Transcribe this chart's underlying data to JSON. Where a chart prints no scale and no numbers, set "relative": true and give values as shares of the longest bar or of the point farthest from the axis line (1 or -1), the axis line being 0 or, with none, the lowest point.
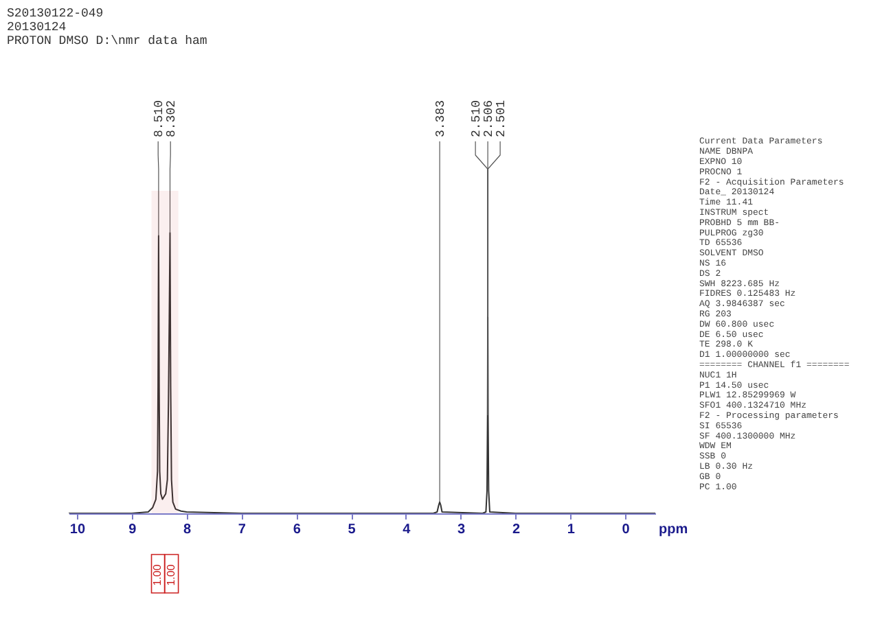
{
  "chart_data": [
    {
      "type": "line",
      "title": "S20130122-049",
      "subtitle": "20130124\nPROTON DMSO D:\\nmr data ham",
      "xlabel": "ppm",
      "relative": true,
      "xlim": [
        10.15,
        -0.55
      ],
      "xticks": [
        10,
        9,
        8,
        7,
        6,
        5,
        4,
        3,
        2,
        1,
        0
      ],
      "x": [
        10.15,
        9.0,
        8.7,
        8.62,
        8.56,
        8.53,
        8.52,
        8.51,
        8.5,
        8.49,
        8.47,
        8.44,
        8.41,
        8.38,
        8.35,
        8.33,
        8.315,
        8.302,
        8.29,
        8.275,
        8.25,
        8.2,
        8.1,
        8.0,
        7.0,
        6.0,
        3.5,
        3.43,
        3.4,
        3.383,
        3.365,
        3.34,
        2.6,
        2.54,
        2.52,
        2.51,
        2.506,
        2.501,
        2.49,
        2.47,
        2.0,
        -0.55
      ],
      "series": [
        {
          "color": "#333333",
          "values": [
            0,
            0,
            0.005,
            0.02,
            0.05,
            0.15,
            0.45,
            0.99,
            0.45,
            0.15,
            0.07,
            0.05,
            0.06,
            0.07,
            0.12,
            0.4,
            0.7,
            1,
            0.45,
            0.12,
            0.04,
            0.015,
            0.008,
            0.005,
            0,
            0,
            0,
            0.005,
            0.03,
            0.04,
            0.03,
            0.005,
            0,
            0.005,
            0.08,
            0.35,
            0.7,
            0.35,
            0.08,
            0.005,
            0,
            0
          ]
        }
      ],
      "annotations": [
        {
          "text": "8.510",
          "x": 8.51,
          "y": 0.99
        },
        {
          "text": "8.302",
          "x": 8.302,
          "y": 1
        },
        {
          "text": "3.383",
          "x": 3.383,
          "y": 0.04
        },
        {
          "text": "2.510",
          "x": 2.51,
          "y": 0.35
        },
        {
          "text": "2.506",
          "x": 2.506,
          "y": 0.7
        },
        {
          "text": "2.501",
          "x": 2.501,
          "y": 0.35
        }
      ],
      "bands": [
        {
          "axis": "x",
          "from": 8.64,
          "to": 8.4,
          "label": "1.00",
          "color": "#cc2222"
        },
        {
          "axis": "x",
          "from": 8.4,
          "to": 8.15,
          "label": "1.00",
          "color": "#cc2222"
        }
      ]
    },
    {
      "type": "other",
      "annotations": [
        "Current Data Parameters",
        "NAME DBNPA",
        "EXPNO 10",
        "PROCNO 1",
        "F2 - Acquisition Parameters",
        "Date_ 20130124",
        "Time 11.41",
        "INSTRUM spect",
        "PROBHD 5 mm BB-",
        "PULPROG zg30",
        "TD 65536",
        "SOLVENT DMSO",
        "NS 16",
        "DS 2",
        "SWH 8223.685 Hz",
        "FIDRES 0.125483 Hz",
        "AQ 3.9846387 sec",
        "RG 203",
        "DW 60.800 usec",
        "DE 6.50 usec",
        "TE 298.0 K",
        "D1 1.00000000 sec",
        "======== CHANNEL f1 ========",
        "NUC1 1H",
        "P1 14.50 usec",
        "PLW1 12.85299969 W",
        "SFO1 400.1324710 MHz",
        "F2 - Processing parameters",
        "SI 65536",
        "SF 400.1300000 MHz",
        "WDW EM",
        "SSB 0",
        "LB 0.30 Hz",
        "GB 0",
        "PC 1.00"
      ]
    }
  ]
}
